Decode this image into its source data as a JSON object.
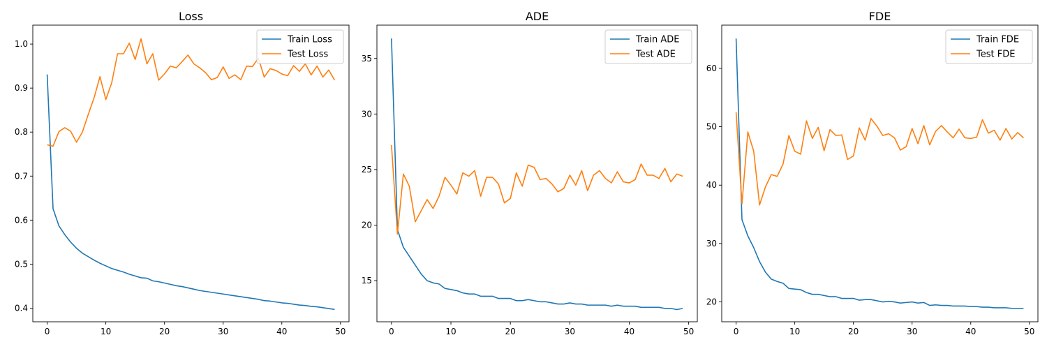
{
  "chart_data": [
    {
      "type": "line",
      "title": "Loss",
      "xlabel": "",
      "ylabel": "",
      "xlim": [
        -2.45,
        51.45
      ],
      "ylim": [
        0.369,
        1.043
      ],
      "xticks": [
        0,
        10,
        20,
        30,
        40,
        50
      ],
      "yticks": [
        0.4,
        0.5,
        0.6,
        0.7,
        0.8,
        0.9,
        1.0
      ],
      "ytick_labels": [
        "0.4",
        "0.5",
        "0.6",
        "0.7",
        "0.8",
        "0.9",
        "1.0"
      ],
      "grid": false,
      "legend": "top-right",
      "x": [
        0,
        1,
        2,
        3,
        4,
        5,
        6,
        7,
        8,
        9,
        10,
        11,
        12,
        13,
        14,
        15,
        16,
        17,
        18,
        19,
        20,
        21,
        22,
        23,
        24,
        25,
        26,
        27,
        28,
        29,
        30,
        31,
        32,
        33,
        34,
        35,
        36,
        37,
        38,
        39,
        40,
        41,
        42,
        43,
        44,
        45,
        46,
        47,
        48,
        49
      ],
      "series": [
        {
          "name": "Train Loss",
          "color": "#1f77b4",
          "values": [
            0.931,
            0.626,
            0.587,
            0.567,
            0.55,
            0.536,
            0.525,
            0.517,
            0.509,
            0.502,
            0.496,
            0.49,
            0.486,
            0.482,
            0.477,
            0.473,
            0.469,
            0.468,
            0.462,
            0.46,
            0.457,
            0.454,
            0.451,
            0.449,
            0.446,
            0.443,
            0.44,
            0.438,
            0.436,
            0.434,
            0.432,
            0.43,
            0.428,
            0.426,
            0.424,
            0.422,
            0.42,
            0.417,
            0.416,
            0.414,
            0.412,
            0.411,
            0.409,
            0.407,
            0.406,
            0.404,
            0.403,
            0.401,
            0.399,
            0.397
          ]
        },
        {
          "name": "Test Loss",
          "color": "#ff7f0e",
          "values": [
            0.771,
            0.768,
            0.801,
            0.81,
            0.802,
            0.777,
            0.8,
            0.84,
            0.878,
            0.926,
            0.874,
            0.912,
            0.978,
            0.978,
            1.002,
            0.965,
            1.012,
            0.955,
            0.978,
            0.918,
            0.932,
            0.95,
            0.946,
            0.96,
            0.975,
            0.955,
            0.946,
            0.935,
            0.919,
            0.924,
            0.948,
            0.922,
            0.93,
            0.919,
            0.95,
            0.949,
            0.968,
            0.925,
            0.944,
            0.94,
            0.932,
            0.928,
            0.951,
            0.938,
            0.955,
            0.93,
            0.95,
            0.925,
            0.941,
            0.918
          ]
        }
      ]
    },
    {
      "type": "line",
      "title": "ADE",
      "xlabel": "",
      "ylabel": "",
      "xlim": [
        -2.45,
        51.45
      ],
      "ylim": [
        11.3,
        38.0
      ],
      "xticks": [
        0,
        10,
        20,
        30,
        40,
        50
      ],
      "yticks": [
        15,
        20,
        25,
        30,
        35
      ],
      "ytick_labels": [
        "15",
        "20",
        "25",
        "30",
        "35"
      ],
      "grid": false,
      "legend": "top-right",
      "x": [
        0,
        1,
        2,
        3,
        4,
        5,
        6,
        7,
        8,
        9,
        10,
        11,
        12,
        13,
        14,
        15,
        16,
        17,
        18,
        19,
        20,
        21,
        22,
        23,
        24,
        25,
        26,
        27,
        28,
        29,
        30,
        31,
        32,
        33,
        34,
        35,
        36,
        37,
        38,
        39,
        40,
        41,
        42,
        43,
        44,
        45,
        46,
        47,
        48,
        49
      ],
      "series": [
        {
          "name": "Train ADE",
          "color": "#1f77b4",
          "values": [
            36.8,
            19.6,
            18.0,
            17.2,
            16.4,
            15.6,
            15.0,
            14.8,
            14.7,
            14.3,
            14.2,
            14.1,
            13.9,
            13.8,
            13.8,
            13.6,
            13.6,
            13.6,
            13.4,
            13.4,
            13.4,
            13.2,
            13.2,
            13.3,
            13.2,
            13.1,
            13.1,
            13.0,
            12.9,
            12.9,
            13.0,
            12.9,
            12.9,
            12.8,
            12.8,
            12.8,
            12.8,
            12.7,
            12.8,
            12.7,
            12.7,
            12.7,
            12.6,
            12.6,
            12.6,
            12.6,
            12.5,
            12.5,
            12.4,
            12.5
          ]
        },
        {
          "name": "Test ADE",
          "color": "#ff7f0e",
          "values": [
            27.2,
            19.2,
            24.6,
            23.5,
            20.3,
            21.3,
            22.3,
            21.5,
            22.6,
            24.3,
            23.6,
            22.8,
            24.7,
            24.4,
            24.9,
            22.6,
            24.3,
            24.3,
            23.7,
            22.0,
            22.4,
            24.7,
            23.5,
            25.4,
            25.2,
            24.1,
            24.2,
            23.7,
            23.0,
            23.3,
            24.5,
            23.6,
            24.9,
            23.1,
            24.5,
            24.9,
            24.2,
            23.8,
            24.8,
            23.9,
            23.8,
            24.1,
            25.5,
            24.5,
            24.5,
            24.2,
            25.1,
            23.9,
            24.6,
            24.4
          ]
        }
      ]
    },
    {
      "type": "line",
      "title": "FDE",
      "xlabel": "",
      "ylabel": "",
      "xlim": [
        -2.45,
        51.45
      ],
      "ylim": [
        16.6,
        67.4
      ],
      "xticks": [
        0,
        10,
        20,
        30,
        40,
        50
      ],
      "yticks": [
        20,
        30,
        40,
        50,
        60
      ],
      "ytick_labels": [
        "20",
        "30",
        "40",
        "50",
        "60"
      ],
      "grid": false,
      "legend": "top-right",
      "x": [
        0,
        1,
        2,
        3,
        4,
        5,
        6,
        7,
        8,
        9,
        10,
        11,
        12,
        13,
        14,
        15,
        16,
        17,
        18,
        19,
        20,
        21,
        22,
        23,
        24,
        25,
        26,
        27,
        28,
        29,
        30,
        31,
        32,
        33,
        34,
        35,
        36,
        37,
        38,
        39,
        40,
        41,
        42,
        43,
        44,
        45,
        46,
        47,
        48,
        49
      ],
      "series": [
        {
          "name": "Train FDE",
          "color": "#1f77b4",
          "values": [
            65.1,
            34.1,
            31.3,
            29.3,
            26.9,
            25.1,
            23.9,
            23.5,
            23.2,
            22.3,
            22.2,
            22.1,
            21.6,
            21.3,
            21.3,
            21.1,
            20.9,
            20.9,
            20.6,
            20.6,
            20.6,
            20.3,
            20.4,
            20.4,
            20.2,
            20.0,
            20.1,
            20.0,
            19.8,
            19.9,
            20.0,
            19.8,
            19.9,
            19.4,
            19.5,
            19.4,
            19.4,
            19.3,
            19.3,
            19.3,
            19.2,
            19.2,
            19.1,
            19.1,
            19.0,
            19.0,
            19.0,
            18.9,
            18.9,
            18.9
          ]
        },
        {
          "name": "Test FDE",
          "color": "#ff7f0e",
          "values": [
            52.5,
            36.8,
            49.1,
            45.8,
            36.6,
            39.7,
            41.8,
            41.5,
            43.6,
            48.5,
            45.8,
            45.3,
            51.0,
            48.0,
            49.9,
            45.9,
            49.5,
            48.5,
            48.6,
            44.4,
            45.0,
            49.8,
            47.7,
            51.4,
            50.1,
            48.5,
            48.8,
            48.1,
            46.0,
            46.6,
            49.7,
            47.1,
            50.2,
            46.9,
            49.2,
            50.2,
            49.1,
            48.1,
            49.6,
            48.1,
            48.0,
            48.2,
            51.2,
            48.9,
            49.4,
            47.7,
            49.7,
            47.9,
            49.0,
            48.1
          ]
        }
      ]
    }
  ]
}
